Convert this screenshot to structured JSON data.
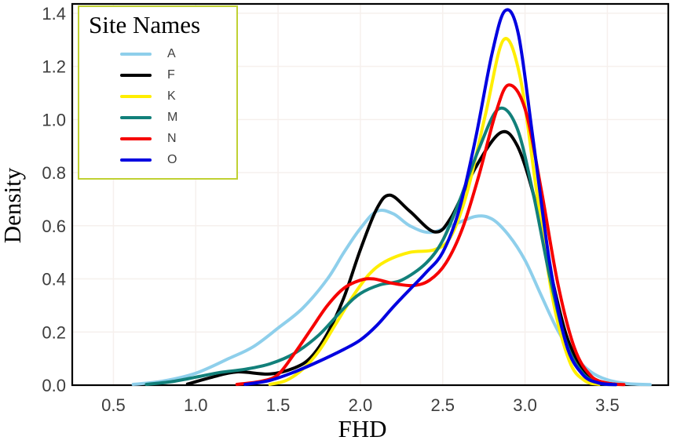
{
  "chart_data": {
    "type": "line",
    "title": "",
    "xlabel": "FHD",
    "ylabel": "Density",
    "xlim": [
      0.25,
      3.87
    ],
    "ylim": [
      0,
      1.435
    ],
    "x_ticks": [
      0.5,
      1.0,
      1.5,
      2.0,
      2.5,
      3.0,
      3.5
    ],
    "y_ticks": [
      0.0,
      0.2,
      0.4,
      0.6,
      0.8,
      1.0,
      1.2,
      1.4
    ],
    "grid": true,
    "legend": {
      "title": "Site Names",
      "position": "top-left",
      "border_color": "#c0d133"
    },
    "colors": {
      "background": "#ffffff",
      "axis_border": "#000000",
      "grid": "#f6f0ed",
      "tick_label": "#3d3d3d"
    },
    "series": [
      {
        "name": "A",
        "color": "#8ecfeb",
        "points": [
          [
            0.62,
            0.003
          ],
          [
            0.8,
            0.015
          ],
          [
            1.0,
            0.045
          ],
          [
            1.2,
            0.1
          ],
          [
            1.35,
            0.145
          ],
          [
            1.5,
            0.215
          ],
          [
            1.65,
            0.29
          ],
          [
            1.8,
            0.4
          ],
          [
            1.9,
            0.5
          ],
          [
            2.0,
            0.59
          ],
          [
            2.1,
            0.655
          ],
          [
            2.2,
            0.645
          ],
          [
            2.3,
            0.6
          ],
          [
            2.42,
            0.575
          ],
          [
            2.55,
            0.6
          ],
          [
            2.7,
            0.635
          ],
          [
            2.8,
            0.625
          ],
          [
            2.9,
            0.565
          ],
          [
            3.0,
            0.47
          ],
          [
            3.1,
            0.335
          ],
          [
            3.2,
            0.205
          ],
          [
            3.3,
            0.11
          ],
          [
            3.4,
            0.05
          ],
          [
            3.5,
            0.02
          ],
          [
            3.62,
            0.006
          ],
          [
            3.76,
            0.002
          ]
        ]
      },
      {
        "name": "F",
        "color": "#000000",
        "points": [
          [
            0.95,
            0.004
          ],
          [
            1.1,
            0.03
          ],
          [
            1.25,
            0.05
          ],
          [
            1.45,
            0.042
          ],
          [
            1.6,
            0.065
          ],
          [
            1.7,
            0.105
          ],
          [
            1.8,
            0.195
          ],
          [
            1.9,
            0.33
          ],
          [
            2.0,
            0.51
          ],
          [
            2.1,
            0.665
          ],
          [
            2.18,
            0.715
          ],
          [
            2.3,
            0.655
          ],
          [
            2.45,
            0.577
          ],
          [
            2.55,
            0.63
          ],
          [
            2.7,
            0.82
          ],
          [
            2.85,
            0.95
          ],
          [
            2.95,
            0.905
          ],
          [
            3.05,
            0.72
          ],
          [
            3.15,
            0.44
          ],
          [
            3.25,
            0.19
          ],
          [
            3.35,
            0.06
          ],
          [
            3.45,
            0.015
          ],
          [
            3.55,
            0.003
          ]
        ]
      },
      {
        "name": "K",
        "color": "#ffee00",
        "points": [
          [
            1.45,
            0.003
          ],
          [
            1.55,
            0.018
          ],
          [
            1.65,
            0.06
          ],
          [
            1.75,
            0.13
          ],
          [
            1.85,
            0.23
          ],
          [
            1.95,
            0.33
          ],
          [
            2.05,
            0.415
          ],
          [
            2.15,
            0.465
          ],
          [
            2.3,
            0.5
          ],
          [
            2.45,
            0.51
          ],
          [
            2.55,
            0.56
          ],
          [
            2.65,
            0.73
          ],
          [
            2.76,
            1.02
          ],
          [
            2.87,
            1.3
          ],
          [
            2.97,
            1.16
          ],
          [
            3.07,
            0.73
          ],
          [
            3.17,
            0.32
          ],
          [
            3.27,
            0.09
          ],
          [
            3.36,
            0.018
          ],
          [
            3.45,
            0.003
          ]
        ]
      },
      {
        "name": "M",
        "color": "#12807a",
        "points": [
          [
            0.7,
            0.003
          ],
          [
            0.85,
            0.013
          ],
          [
            1.0,
            0.03
          ],
          [
            1.15,
            0.048
          ],
          [
            1.3,
            0.06
          ],
          [
            1.45,
            0.08
          ],
          [
            1.6,
            0.12
          ],
          [
            1.75,
            0.19
          ],
          [
            1.9,
            0.29
          ],
          [
            2.0,
            0.345
          ],
          [
            2.12,
            0.378
          ],
          [
            2.25,
            0.395
          ],
          [
            2.4,
            0.46
          ],
          [
            2.5,
            0.545
          ],
          [
            2.6,
            0.69
          ],
          [
            2.72,
            0.89
          ],
          [
            2.84,
            1.04
          ],
          [
            2.95,
            0.97
          ],
          [
            3.05,
            0.72
          ],
          [
            3.15,
            0.41
          ],
          [
            3.25,
            0.16
          ],
          [
            3.35,
            0.045
          ],
          [
            3.45,
            0.008
          ],
          [
            3.55,
            0.002
          ]
        ]
      },
      {
        "name": "N",
        "color": "#f60000",
        "points": [
          [
            1.25,
            0.003
          ],
          [
            1.4,
            0.015
          ],
          [
            1.5,
            0.04
          ],
          [
            1.6,
            0.12
          ],
          [
            1.7,
            0.21
          ],
          [
            1.8,
            0.3
          ],
          [
            1.9,
            0.365
          ],
          [
            2.0,
            0.395
          ],
          [
            2.08,
            0.4
          ],
          [
            2.2,
            0.383
          ],
          [
            2.32,
            0.375
          ],
          [
            2.42,
            0.395
          ],
          [
            2.52,
            0.46
          ],
          [
            2.62,
            0.59
          ],
          [
            2.72,
            0.79
          ],
          [
            2.82,
            1.02
          ],
          [
            2.9,
            1.13
          ],
          [
            3.0,
            1.04
          ],
          [
            3.1,
            0.73
          ],
          [
            3.2,
            0.38
          ],
          [
            3.3,
            0.14
          ],
          [
            3.4,
            0.035
          ],
          [
            3.5,
            0.008
          ],
          [
            3.6,
            0.002
          ]
        ]
      },
      {
        "name": "O",
        "color": "#0000e0",
        "points": [
          [
            1.3,
            0.003
          ],
          [
            1.45,
            0.018
          ],
          [
            1.6,
            0.05
          ],
          [
            1.75,
            0.09
          ],
          [
            1.9,
            0.135
          ],
          [
            2.0,
            0.17
          ],
          [
            2.1,
            0.225
          ],
          [
            2.2,
            0.295
          ],
          [
            2.3,
            0.36
          ],
          [
            2.4,
            0.425
          ],
          [
            2.5,
            0.5
          ],
          [
            2.6,
            0.66
          ],
          [
            2.7,
            0.93
          ],
          [
            2.8,
            1.25
          ],
          [
            2.88,
            1.41
          ],
          [
            2.96,
            1.32
          ],
          [
            3.05,
            0.92
          ],
          [
            3.15,
            0.46
          ],
          [
            3.25,
            0.155
          ],
          [
            3.35,
            0.04
          ],
          [
            3.45,
            0.008
          ],
          [
            3.55,
            0.002
          ]
        ]
      }
    ]
  }
}
